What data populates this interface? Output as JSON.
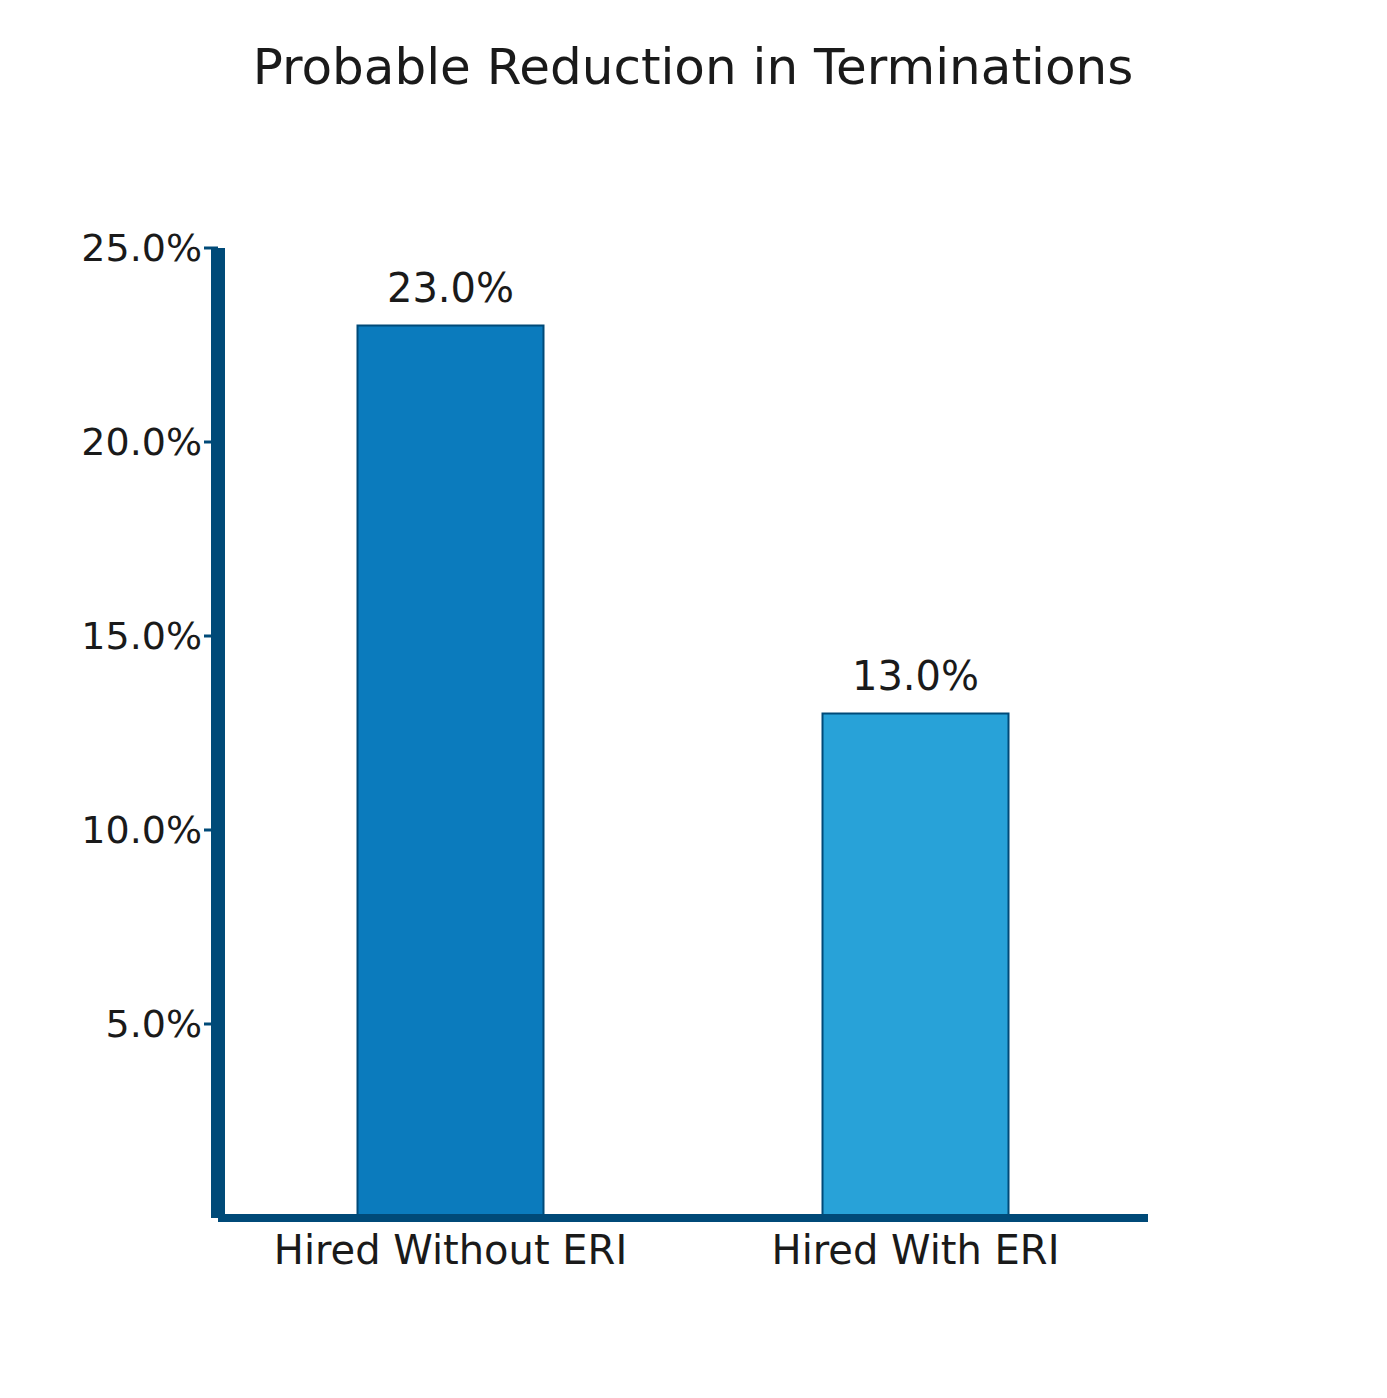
{
  "chart_data": {
    "type": "bar",
    "title": "Probable Reduction in Terminations",
    "categories": [
      "Hired Without ERI",
      "Hired With ERI"
    ],
    "values": [
      23.0,
      13.0
    ],
    "value_labels": [
      "23.0%",
      "13.0%"
    ],
    "colors": [
      "#0b7bbd",
      "#28a2d8"
    ],
    "ylim": [
      0,
      25
    ],
    "yticks": [
      {
        "value": 5,
        "label": "5.0%"
      },
      {
        "value": 10,
        "label": "10.0%"
      },
      {
        "value": 15,
        "label": "15.0%"
      },
      {
        "value": 20,
        "label": "20.0%"
      },
      {
        "value": 25,
        "label": "25.0%"
      }
    ],
    "grid": false,
    "data_labels": true
  }
}
